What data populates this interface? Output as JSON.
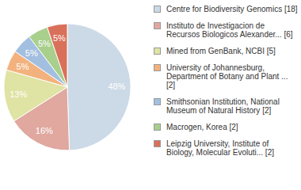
{
  "chart_data": {
    "type": "pie",
    "categories": [
      "Centre for Biodiversity Genomics [18]",
      "Instituto de Investigacion de Recursos Biologicos Alexander... [6]",
      "Mined from GenBank, NCBI [5]",
      "University of Johannesburg, Department of Botany and Plant ... [2]",
      "Smithsonian Institution, National Museum of Natural History [2]",
      "Macrogen, Korea [2]",
      "Leipzig University, Institute of Biology, Molecular Evoluti... [2]"
    ],
    "values": [
      48,
      16,
      13,
      5,
      5,
      5,
      5
    ],
    "value_labels": [
      "48%",
      "16%",
      "13%",
      "5%",
      "5%",
      "5%",
      "5%"
    ],
    "colors": [
      "#ccd9e6",
      "#e0a89f",
      "#dfe3a3",
      "#f3b27d",
      "#a3bfe0",
      "#a8cf8c",
      "#d9705a"
    ],
    "data_labels": true,
    "legend": "right"
  }
}
